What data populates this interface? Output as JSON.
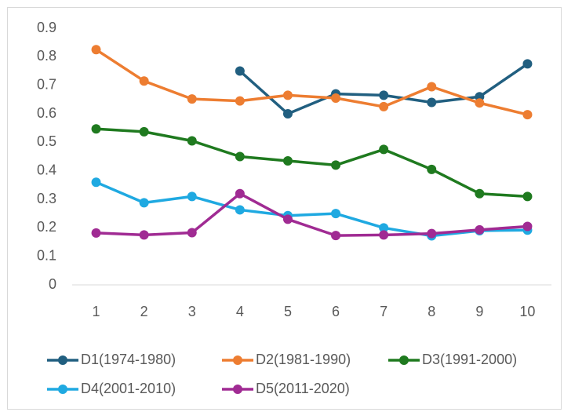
{
  "chart_data": {
    "type": "line",
    "categories": [
      "1",
      "2",
      "3",
      "4",
      "5",
      "6",
      "7",
      "8",
      "9",
      "10"
    ],
    "series": [
      {
        "name": "D1(1974-1980)",
        "color": "#215f80",
        "values": [
          null,
          null,
          null,
          0.75,
          0.6,
          0.67,
          0.665,
          0.64,
          0.66,
          0.775
        ]
      },
      {
        "name": "D2(1981-1990)",
        "color": "#ed7d31",
        "values": [
          0.825,
          0.715,
          0.652,
          0.645,
          0.665,
          0.655,
          0.625,
          0.695,
          0.638,
          0.597
        ]
      },
      {
        "name": "D3(1991-2000)",
        "color": "#1f7a1f",
        "values": [
          0.547,
          0.537,
          0.505,
          0.45,
          0.435,
          0.42,
          0.475,
          0.405,
          0.32,
          0.31
        ]
      },
      {
        "name": "D4(2001-2010)",
        "color": "#1fa9e1",
        "values": [
          0.36,
          0.288,
          0.31,
          0.263,
          0.243,
          0.25,
          0.2,
          0.172,
          0.19,
          0.192
        ]
      },
      {
        "name": "D5(2011-2020)",
        "color": "#a02b93",
        "values": [
          0.182,
          0.175,
          0.183,
          0.32,
          0.23,
          0.173,
          0.175,
          0.18,
          0.193,
          0.205
        ]
      }
    ],
    "ylim": [
      0,
      0.9
    ],
    "yticks": [
      0,
      0.1,
      0.2,
      0.3,
      0.4,
      0.5,
      0.6,
      0.7,
      0.8,
      0.9
    ],
    "grid": false,
    "legend": "bottom"
  }
}
